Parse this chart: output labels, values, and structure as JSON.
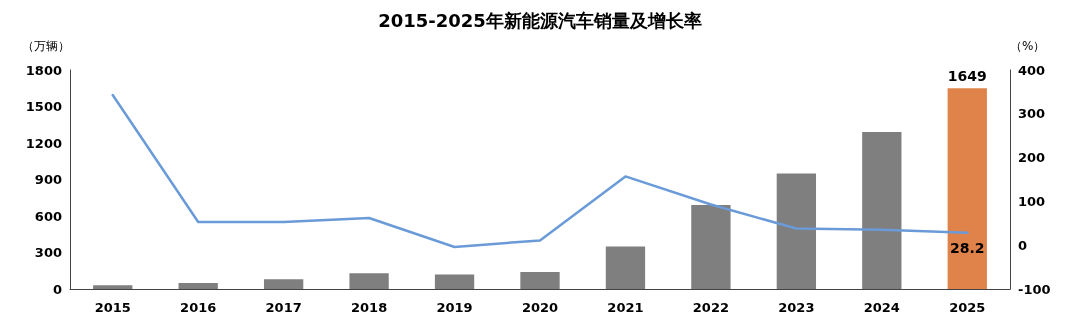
{
  "chart_data": {
    "type": "bar",
    "title": "2015-2025年新能源汽车销量及增长率",
    "categories": [
      "2015",
      "2016",
      "2017",
      "2018",
      "2019",
      "2020",
      "2021",
      "2022",
      "2023",
      "2024",
      "2025"
    ],
    "series": [
      {
        "colors": [
          "#7f7f7f",
          "#7f7f7f",
          "#7f7f7f",
          "#7f7f7f",
          "#7f7f7f",
          "#7f7f7f",
          "#7f7f7f",
          "#7f7f7f",
          "#7f7f7f",
          "#7f7f7f",
          "#e0834a"
        ],
        "values": [
          30,
          50,
          80,
          130,
          120,
          140,
          350,
          690,
          950,
          1290,
          1649
        ],
        "value_labels": [
          null,
          null,
          null,
          null,
          null,
          null,
          null,
          null,
          null,
          null,
          "1649"
        ]
      },
      {
        "type": "line",
        "axis": "y2",
        "color": "#6a9bd8",
        "values": [
          343,
          53,
          53,
          62,
          -4,
          11,
          157,
          93,
          38,
          35,
          28.2
        ],
        "value_labels": [
          null,
          null,
          null,
          null,
          null,
          null,
          null,
          null,
          null,
          null,
          "28.2"
        ]
      }
    ],
    "ylabel": "（万辆）",
    "y2label": "（%）",
    "ylim": [
      0,
      1800
    ],
    "yticks": [
      0,
      300,
      600,
      900,
      1200,
      1500,
      1800
    ],
    "y2lim": [
      -100,
      400
    ],
    "y2ticks": [
      -100,
      0,
      100,
      200,
      300,
      400
    ],
    "grid": false,
    "marker": "none",
    "line_style": "solid"
  }
}
